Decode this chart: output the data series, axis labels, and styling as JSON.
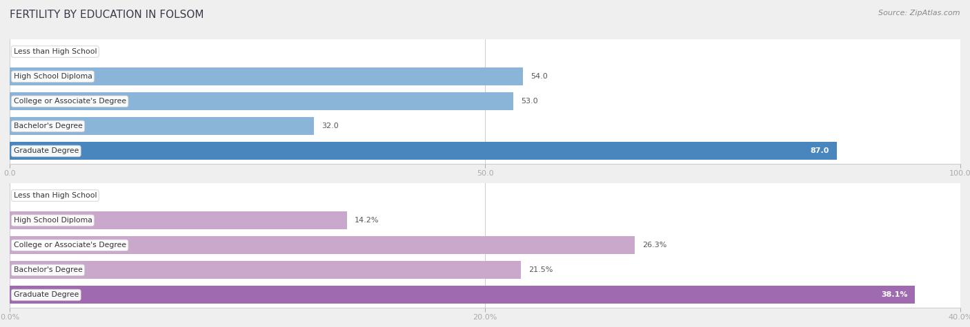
{
  "title": "FERTILITY BY EDUCATION IN FOLSOM",
  "source": "Source: ZipAtlas.com",
  "chart1": {
    "categories": [
      "Less than High School",
      "High School Diploma",
      "College or Associate's Degree",
      "Bachelor's Degree",
      "Graduate Degree"
    ],
    "values": [
      0.0,
      54.0,
      53.0,
      32.0,
      87.0
    ],
    "xlim": [
      0,
      100
    ],
    "xticks": [
      0.0,
      50.0,
      100.0
    ],
    "xtick_labels": [
      "0.0",
      "50.0",
      "100.0"
    ],
    "bar_color": "#8ab4d8",
    "highlight_color": "#4a86be",
    "label_color_inside": "#ffffff",
    "label_color_outside": "#555555",
    "label_threshold": 78,
    "value_suffix": ""
  },
  "chart2": {
    "categories": [
      "Less than High School",
      "High School Diploma",
      "College or Associate's Degree",
      "Bachelor's Degree",
      "Graduate Degree"
    ],
    "values": [
      0.0,
      14.2,
      26.3,
      21.5,
      38.1
    ],
    "xlim": [
      0,
      40
    ],
    "xticks": [
      0.0,
      20.0,
      40.0
    ],
    "xtick_labels": [
      "0.0%",
      "20.0%",
      "40.0%"
    ],
    "bar_color": "#c9a8cc",
    "highlight_color": "#a06ab0",
    "label_color_inside": "#ffffff",
    "label_color_outside": "#555555",
    "label_threshold": 32,
    "value_suffix": "%"
  },
  "bg_color": "#efefef",
  "row_bg_even": "#f7f7f9",
  "row_bg_odd": "#ffffff",
  "label_fontsize": 8.0,
  "category_fontsize": 7.8,
  "tick_fontsize": 8.0,
  "title_fontsize": 11,
  "source_fontsize": 8
}
